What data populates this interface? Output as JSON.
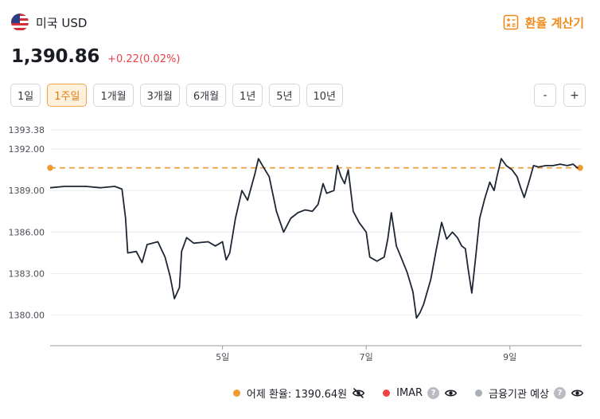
{
  "header": {
    "currency_name": "미국 USD",
    "calc_label": "환율 계산기"
  },
  "quote": {
    "price": "1,390.86",
    "change": "+0.22(0.02%)"
  },
  "periods": [
    {
      "label": "1일",
      "active": false
    },
    {
      "label": "1주일",
      "active": true
    },
    {
      "label": "1개월",
      "active": false
    },
    {
      "label": "3개월",
      "active": false
    },
    {
      "label": "6개월",
      "active": false
    },
    {
      "label": "1년",
      "active": false
    },
    {
      "label": "5년",
      "active": false
    },
    {
      "label": "10년",
      "active": false
    }
  ],
  "zoom": {
    "minus": "-",
    "plus": "+"
  },
  "legend": {
    "prev_label": "어제 환율: 1390.64원",
    "imar_label": "IMAR",
    "forecast_label": "금융기관 예상",
    "help": "?"
  },
  "colors": {
    "line": "#1e2633",
    "prev_close": "#f29a30",
    "imar": "#ef4444",
    "forecast": "#a9adb5",
    "accent": "#f08a1c",
    "up": "#e8424a"
  },
  "icons": {
    "flag": "us-flag-icon",
    "calculator": "calculator-icon",
    "eye_off": "eye-off-icon",
    "eye": "eye-icon",
    "help": "help-circle-icon"
  },
  "chart_data": {
    "type": "line",
    "title": "",
    "xlabel": "",
    "ylabel": "",
    "x_ticks": [
      {
        "label": "5일",
        "x": 1.0
      },
      {
        "label": "7일",
        "x": 3.0
      },
      {
        "label": "9일",
        "x": 5.0
      }
    ],
    "y_ticks": [
      1380.0,
      1383.0,
      1386.0,
      1389.0,
      1392.0,
      1393.38
    ],
    "ylim": [
      1377.8,
      1393.38
    ],
    "xlim": [
      -1.4,
      6.0
    ],
    "grid": "horizontal",
    "prev_close": 1390.64,
    "series": [
      {
        "points": [
          [
            -1.4,
            1389.2
          ],
          [
            -1.2,
            1389.3
          ],
          [
            -0.9,
            1389.3
          ],
          [
            -0.7,
            1389.2
          ],
          [
            -0.5,
            1389.3
          ],
          [
            -0.4,
            1389.1
          ],
          [
            -0.35,
            1387.0
          ],
          [
            -0.32,
            1384.5
          ],
          [
            -0.2,
            1384.6
          ],
          [
            -0.12,
            1383.8
          ],
          [
            -0.05,
            1385.1
          ],
          [
            0.1,
            1385.3
          ],
          [
            0.2,
            1384.2
          ],
          [
            0.27,
            1382.8
          ],
          [
            0.33,
            1381.2
          ],
          [
            0.4,
            1382.0
          ],
          [
            0.43,
            1384.6
          ],
          [
            0.5,
            1385.6
          ],
          [
            0.6,
            1385.2
          ],
          [
            0.8,
            1385.3
          ],
          [
            0.9,
            1385.0
          ],
          [
            1.0,
            1385.3
          ],
          [
            1.05,
            1384.0
          ],
          [
            1.1,
            1384.5
          ],
          [
            1.18,
            1387.0
          ],
          [
            1.27,
            1389.0
          ],
          [
            1.35,
            1388.3
          ],
          [
            1.45,
            1390.2
          ],
          [
            1.5,
            1391.3
          ],
          [
            1.58,
            1390.6
          ],
          [
            1.65,
            1390.0
          ],
          [
            1.75,
            1387.5
          ],
          [
            1.85,
            1386.0
          ],
          [
            1.95,
            1387.0
          ],
          [
            2.05,
            1387.4
          ],
          [
            2.15,
            1387.6
          ],
          [
            2.25,
            1387.5
          ],
          [
            2.33,
            1388.0
          ],
          [
            2.4,
            1389.5
          ],
          [
            2.45,
            1388.8
          ],
          [
            2.55,
            1389.0
          ],
          [
            2.6,
            1390.8
          ],
          [
            2.65,
            1390.0
          ],
          [
            2.7,
            1389.5
          ],
          [
            2.75,
            1390.5
          ],
          [
            2.82,
            1387.5
          ],
          [
            2.9,
            1386.7
          ],
          [
            3.0,
            1386.0
          ],
          [
            3.05,
            1384.2
          ],
          [
            3.15,
            1383.9
          ],
          [
            3.25,
            1384.2
          ],
          [
            3.3,
            1385.5
          ],
          [
            3.35,
            1387.4
          ],
          [
            3.42,
            1385.0
          ],
          [
            3.5,
            1384.0
          ],
          [
            3.57,
            1383.1
          ],
          [
            3.65,
            1381.7
          ],
          [
            3.7,
            1379.8
          ],
          [
            3.75,
            1380.2
          ],
          [
            3.8,
            1380.8
          ],
          [
            3.9,
            1382.6
          ],
          [
            3.97,
            1384.6
          ],
          [
            4.05,
            1386.7
          ],
          [
            4.12,
            1385.5
          ],
          [
            4.2,
            1386.0
          ],
          [
            4.27,
            1385.6
          ],
          [
            4.33,
            1385.0
          ],
          [
            4.38,
            1384.8
          ],
          [
            4.42,
            1383.3
          ],
          [
            4.47,
            1381.6
          ],
          [
            4.52,
            1384.0
          ],
          [
            4.58,
            1387.0
          ],
          [
            4.65,
            1388.4
          ],
          [
            4.72,
            1389.6
          ],
          [
            4.78,
            1389.0
          ],
          [
            4.82,
            1390.0
          ],
          [
            4.88,
            1391.3
          ],
          [
            4.95,
            1390.8
          ],
          [
            5.03,
            1390.5
          ],
          [
            5.1,
            1390.0
          ],
          [
            5.15,
            1389.2
          ],
          [
            5.2,
            1388.5
          ],
          [
            5.27,
            1389.7
          ],
          [
            5.33,
            1390.8
          ],
          [
            5.4,
            1390.7
          ],
          [
            5.5,
            1390.8
          ],
          [
            5.6,
            1390.8
          ],
          [
            5.7,
            1390.9
          ],
          [
            5.8,
            1390.8
          ],
          [
            5.88,
            1390.9
          ],
          [
            5.95,
            1390.6
          ]
        ]
      }
    ]
  }
}
